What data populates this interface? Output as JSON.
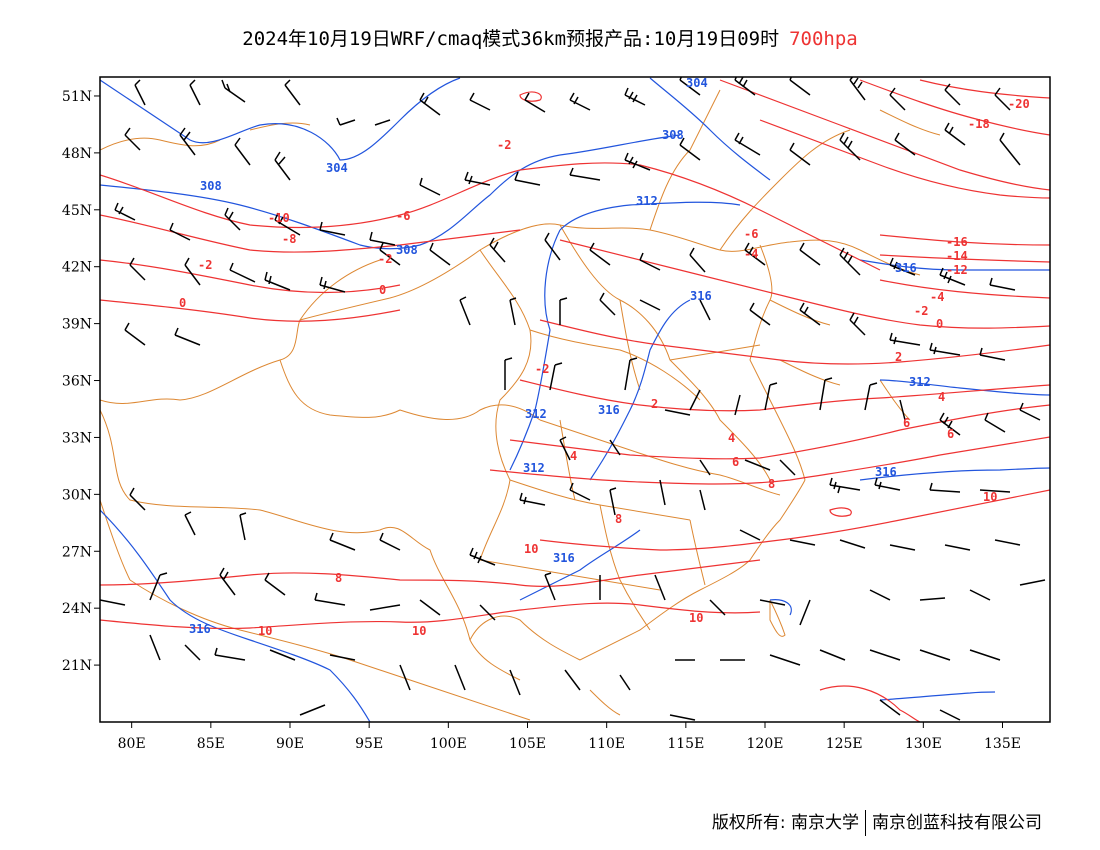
{
  "title": {
    "main": "2024年10月19日WRF/cmaq模式36km预报产品:10月19日09时",
    "level": "700hpa"
  },
  "axes": {
    "lat_labels": [
      "51N",
      "48N",
      "45N",
      "42N",
      "39N",
      "36N",
      "33N",
      "30N",
      "27N",
      "24N",
      "21N"
    ],
    "lon_labels": [
      "80E",
      "85E",
      "90E",
      "95E",
      "100E",
      "105E",
      "110E",
      "115E",
      "120E",
      "125E",
      "130E",
      "135E"
    ]
  },
  "map_data": {
    "lon_range": [
      78,
      138
    ],
    "lat_range": [
      18,
      52
    ],
    "height_contour_labels": [
      "304",
      "308",
      "308",
      "308",
      "312",
      "312",
      "312",
      "316",
      "316",
      "316",
      "316",
      "316",
      "316",
      "312",
      "304"
    ],
    "temp_contour_labels": [
      "-20",
      "-18",
      "-16",
      "-14",
      "-12",
      "-10",
      "-8",
      "-6",
      "-6",
      "-4",
      "-4",
      "-2",
      "-2",
      "-2",
      "-2",
      "0",
      "0",
      "0",
      "-2",
      "2",
      "2",
      "4",
      "4",
      "4",
      "6",
      "6",
      "6",
      "8",
      "8",
      "8",
      "10",
      "10",
      "10",
      "10",
      "10"
    ]
  },
  "colors": {
    "height_contours": "#2255dd",
    "temp_contours": "#ee3333",
    "borders": "#dd8833",
    "wind_barbs": "#000000"
  },
  "footer": {
    "copyright": "版权所有: 南京大学",
    "company": "南京创蓝科技有限公司"
  }
}
